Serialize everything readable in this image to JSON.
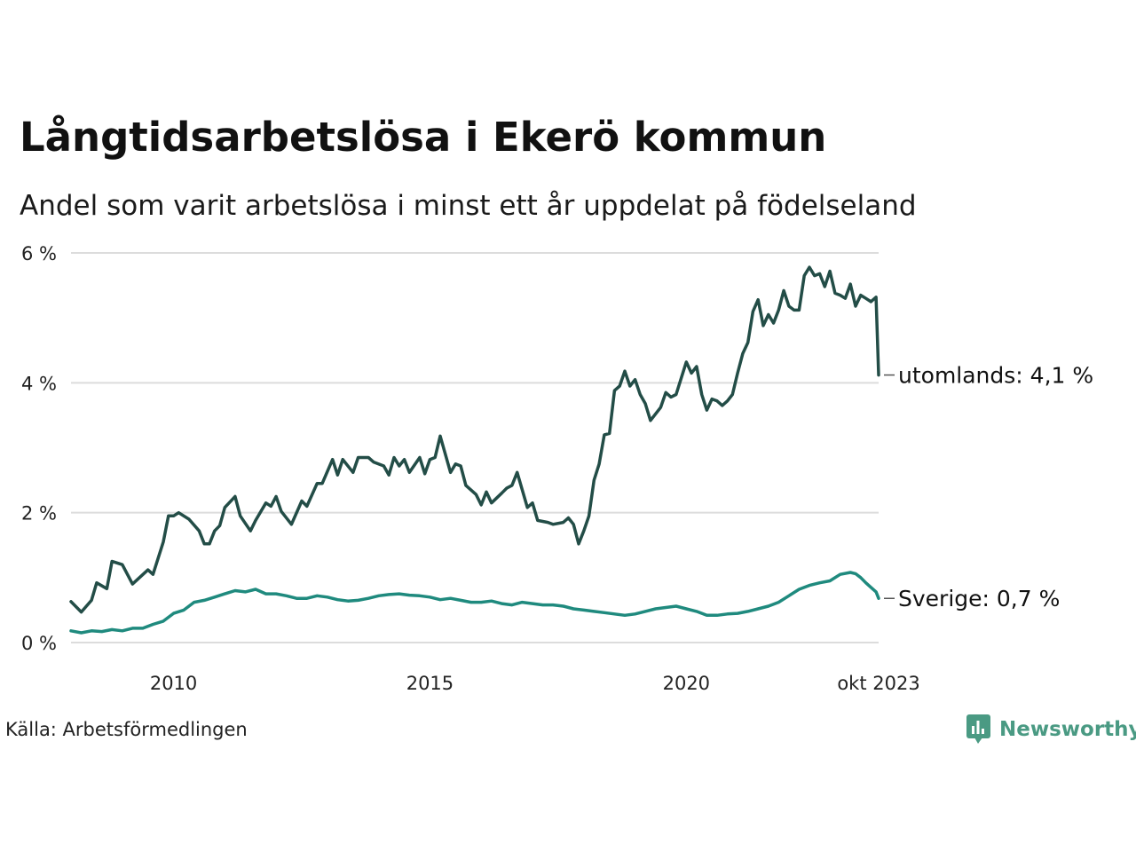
{
  "header": {
    "title": "Långtidsarbetslösa i Ekerö kommun",
    "subtitle": "Andel som varit arbetslösa i minst ett år uppdelat på födelseland"
  },
  "footer": {
    "source": "Källa: Arbetsförmedlingen",
    "brand": "Newsworthy",
    "brand_color": "#4a9a83"
  },
  "chart_data": {
    "type": "line",
    "title": "Långtidsarbetslösa i Ekerö kommun",
    "subtitle": "Andel som varit arbetslösa i minst ett år uppdelat på födelseland",
    "xlabel": "",
    "ylabel": "",
    "xlim": [
      2008.0,
      2023.75
    ],
    "ylim": [
      0,
      6
    ],
    "grid": true,
    "y_ticks": [
      {
        "value": 0,
        "label": "0 %"
      },
      {
        "value": 2,
        "label": "2 %"
      },
      {
        "value": 4,
        "label": "4 %"
      },
      {
        "value": 6,
        "label": "6 %"
      }
    ],
    "x_ticks": [
      {
        "value": 2010,
        "label": "2010"
      },
      {
        "value": 2015,
        "label": "2015"
      },
      {
        "value": 2020,
        "label": "2020"
      },
      {
        "value": 2023.75,
        "label": "okt 2023"
      }
    ],
    "series": [
      {
        "name": "utomlands",
        "color": "#234d47",
        "end_label": "utomlands: 4,1 %",
        "points": [
          [
            2008.0,
            0.63
          ],
          [
            2008.2,
            0.47
          ],
          [
            2008.4,
            0.65
          ],
          [
            2008.5,
            0.92
          ],
          [
            2008.7,
            0.83
          ],
          [
            2008.8,
            1.25
          ],
          [
            2009.0,
            1.2
          ],
          [
            2009.2,
            0.9
          ],
          [
            2009.5,
            1.12
          ],
          [
            2009.6,
            1.05
          ],
          [
            2009.8,
            1.55
          ],
          [
            2009.9,
            1.95
          ],
          [
            2010.0,
            1.95
          ],
          [
            2010.1,
            2.0
          ],
          [
            2010.3,
            1.9
          ],
          [
            2010.5,
            1.72
          ],
          [
            2010.6,
            1.52
          ],
          [
            2010.7,
            1.52
          ],
          [
            2010.8,
            1.72
          ],
          [
            2010.9,
            1.8
          ],
          [
            2011.0,
            2.08
          ],
          [
            2011.2,
            2.25
          ],
          [
            2011.3,
            1.95
          ],
          [
            2011.5,
            1.72
          ],
          [
            2011.6,
            1.88
          ],
          [
            2011.8,
            2.15
          ],
          [
            2011.9,
            2.1
          ],
          [
            2012.0,
            2.25
          ],
          [
            2012.1,
            2.02
          ],
          [
            2012.3,
            1.82
          ],
          [
            2012.5,
            2.18
          ],
          [
            2012.6,
            2.1
          ],
          [
            2012.8,
            2.45
          ],
          [
            2012.9,
            2.45
          ],
          [
            2013.1,
            2.82
          ],
          [
            2013.2,
            2.58
          ],
          [
            2013.3,
            2.82
          ],
          [
            2013.5,
            2.62
          ],
          [
            2013.6,
            2.85
          ],
          [
            2013.8,
            2.85
          ],
          [
            2013.9,
            2.78
          ],
          [
            2014.1,
            2.72
          ],
          [
            2014.2,
            2.58
          ],
          [
            2014.3,
            2.85
          ],
          [
            2014.4,
            2.72
          ],
          [
            2014.5,
            2.82
          ],
          [
            2014.6,
            2.62
          ],
          [
            2014.8,
            2.85
          ],
          [
            2014.9,
            2.6
          ],
          [
            2015.0,
            2.82
          ],
          [
            2015.1,
            2.85
          ],
          [
            2015.2,
            3.18
          ],
          [
            2015.4,
            2.62
          ],
          [
            2015.5,
            2.75
          ],
          [
            2015.6,
            2.72
          ],
          [
            2015.7,
            2.42
          ],
          [
            2015.9,
            2.28
          ],
          [
            2016.0,
            2.12
          ],
          [
            2016.1,
            2.32
          ],
          [
            2016.2,
            2.15
          ],
          [
            2016.4,
            2.3
          ],
          [
            2016.5,
            2.38
          ],
          [
            2016.6,
            2.42
          ],
          [
            2016.7,
            2.62
          ],
          [
            2016.9,
            2.08
          ],
          [
            2017.0,
            2.15
          ],
          [
            2017.1,
            1.88
          ],
          [
            2017.3,
            1.85
          ],
          [
            2017.4,
            1.82
          ],
          [
            2017.6,
            1.85
          ],
          [
            2017.7,
            1.92
          ],
          [
            2017.8,
            1.82
          ],
          [
            2017.9,
            1.52
          ],
          [
            2018.0,
            1.72
          ],
          [
            2018.1,
            1.95
          ],
          [
            2018.2,
            2.5
          ],
          [
            2018.3,
            2.75
          ],
          [
            2018.4,
            3.2
          ],
          [
            2018.5,
            3.22
          ],
          [
            2018.6,
            3.88
          ],
          [
            2018.7,
            3.95
          ],
          [
            2018.8,
            4.18
          ],
          [
            2018.9,
            3.95
          ],
          [
            2019.0,
            4.05
          ],
          [
            2019.1,
            3.82
          ],
          [
            2019.2,
            3.68
          ],
          [
            2019.3,
            3.42
          ],
          [
            2019.5,
            3.62
          ],
          [
            2019.6,
            3.85
          ],
          [
            2019.7,
            3.78
          ],
          [
            2019.8,
            3.82
          ],
          [
            2020.0,
            4.32
          ],
          [
            2020.1,
            4.15
          ],
          [
            2020.2,
            4.25
          ],
          [
            2020.3,
            3.82
          ],
          [
            2020.4,
            3.58
          ],
          [
            2020.5,
            3.75
          ],
          [
            2020.6,
            3.72
          ],
          [
            2020.7,
            3.65
          ],
          [
            2020.8,
            3.72
          ],
          [
            2020.9,
            3.82
          ],
          [
            2021.0,
            4.15
          ],
          [
            2021.1,
            4.45
          ],
          [
            2021.2,
            4.62
          ],
          [
            2021.3,
            5.1
          ],
          [
            2021.4,
            5.28
          ],
          [
            2021.5,
            4.88
          ],
          [
            2021.6,
            5.05
          ],
          [
            2021.7,
            4.92
          ],
          [
            2021.8,
            5.12
          ],
          [
            2021.9,
            5.42
          ],
          [
            2022.0,
            5.18
          ],
          [
            2022.1,
            5.12
          ],
          [
            2022.2,
            5.12
          ],
          [
            2022.3,
            5.65
          ],
          [
            2022.4,
            5.78
          ],
          [
            2022.5,
            5.65
          ],
          [
            2022.6,
            5.68
          ],
          [
            2022.7,
            5.48
          ],
          [
            2022.8,
            5.72
          ],
          [
            2022.9,
            5.38
          ],
          [
            2023.0,
            5.35
          ],
          [
            2023.1,
            5.3
          ],
          [
            2023.2,
            5.52
          ],
          [
            2023.3,
            5.18
          ],
          [
            2023.4,
            5.35
          ],
          [
            2023.5,
            5.3
          ],
          [
            2023.6,
            5.25
          ],
          [
            2023.7,
            5.32
          ],
          [
            2023.75,
            4.12
          ]
        ]
      },
      {
        "name": "Sverige",
        "color": "#1f8a7e",
        "end_label": "Sverige: 0,7 %",
        "points": [
          [
            2008.0,
            0.18
          ],
          [
            2008.2,
            0.15
          ],
          [
            2008.4,
            0.18
          ],
          [
            2008.6,
            0.17
          ],
          [
            2008.8,
            0.2
          ],
          [
            2009.0,
            0.18
          ],
          [
            2009.2,
            0.22
          ],
          [
            2009.4,
            0.22
          ],
          [
            2009.6,
            0.28
          ],
          [
            2009.8,
            0.33
          ],
          [
            2010.0,
            0.45
          ],
          [
            2010.2,
            0.5
          ],
          [
            2010.4,
            0.62
          ],
          [
            2010.6,
            0.65
          ],
          [
            2010.8,
            0.7
          ],
          [
            2011.0,
            0.75
          ],
          [
            2011.2,
            0.8
          ],
          [
            2011.4,
            0.78
          ],
          [
            2011.6,
            0.82
          ],
          [
            2011.8,
            0.75
          ],
          [
            2012.0,
            0.75
          ],
          [
            2012.2,
            0.72
          ],
          [
            2012.4,
            0.68
          ],
          [
            2012.6,
            0.68
          ],
          [
            2012.8,
            0.72
          ],
          [
            2013.0,
            0.7
          ],
          [
            2013.2,
            0.66
          ],
          [
            2013.4,
            0.64
          ],
          [
            2013.6,
            0.65
          ],
          [
            2013.8,
            0.68
          ],
          [
            2014.0,
            0.72
          ],
          [
            2014.2,
            0.74
          ],
          [
            2014.4,
            0.75
          ],
          [
            2014.6,
            0.73
          ],
          [
            2014.8,
            0.72
          ],
          [
            2015.0,
            0.7
          ],
          [
            2015.2,
            0.66
          ],
          [
            2015.4,
            0.68
          ],
          [
            2015.6,
            0.65
          ],
          [
            2015.8,
            0.62
          ],
          [
            2016.0,
            0.62
          ],
          [
            2016.2,
            0.64
          ],
          [
            2016.4,
            0.6
          ],
          [
            2016.6,
            0.58
          ],
          [
            2016.8,
            0.62
          ],
          [
            2017.0,
            0.6
          ],
          [
            2017.2,
            0.58
          ],
          [
            2017.4,
            0.58
          ],
          [
            2017.6,
            0.56
          ],
          [
            2017.8,
            0.52
          ],
          [
            2018.0,
            0.5
          ],
          [
            2018.2,
            0.48
          ],
          [
            2018.4,
            0.46
          ],
          [
            2018.6,
            0.44
          ],
          [
            2018.8,
            0.42
          ],
          [
            2019.0,
            0.44
          ],
          [
            2019.2,
            0.48
          ],
          [
            2019.4,
            0.52
          ],
          [
            2019.6,
            0.54
          ],
          [
            2019.8,
            0.56
          ],
          [
            2020.0,
            0.52
          ],
          [
            2020.2,
            0.48
          ],
          [
            2020.4,
            0.42
          ],
          [
            2020.6,
            0.42
          ],
          [
            2020.8,
            0.44
          ],
          [
            2021.0,
            0.45
          ],
          [
            2021.2,
            0.48
          ],
          [
            2021.4,
            0.52
          ],
          [
            2021.6,
            0.56
          ],
          [
            2021.8,
            0.62
          ],
          [
            2022.0,
            0.72
          ],
          [
            2022.2,
            0.82
          ],
          [
            2022.4,
            0.88
          ],
          [
            2022.6,
            0.92
          ],
          [
            2022.8,
            0.95
          ],
          [
            2023.0,
            1.05
          ],
          [
            2023.2,
            1.08
          ],
          [
            2023.3,
            1.06
          ],
          [
            2023.4,
            1.0
          ],
          [
            2023.5,
            0.92
          ],
          [
            2023.6,
            0.85
          ],
          [
            2023.7,
            0.78
          ],
          [
            2023.75,
            0.68
          ]
        ]
      }
    ]
  }
}
